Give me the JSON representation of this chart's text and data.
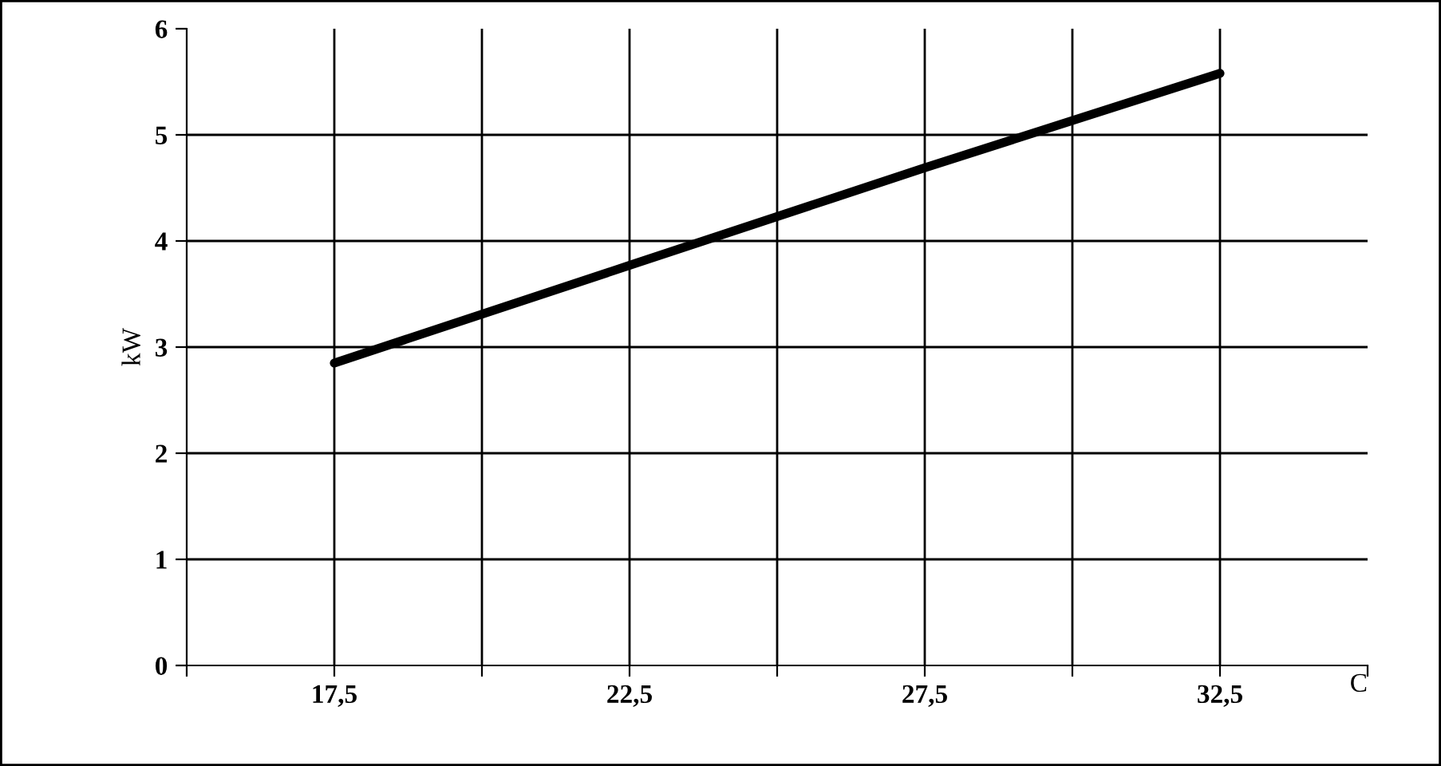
{
  "chart_data": {
    "type": "line",
    "xlabel": "C",
    "ylabel": "kW",
    "x": [
      17.5,
      22.5,
      27.5,
      32.5
    ],
    "series": [
      {
        "color": "#000000",
        "values": [
          2.85,
          3.77,
          4.69,
          5.58
        ]
      }
    ],
    "xlim": [
      15,
      35
    ],
    "xticks": [
      {
        "value": 15,
        "label": null
      },
      {
        "value": 17.5,
        "label": "17,5"
      },
      {
        "value": 20,
        "label": null
      },
      {
        "value": 22.5,
        "label": "22,5"
      },
      {
        "value": 25,
        "label": null
      },
      {
        "value": 27.5,
        "label": "27,5"
      },
      {
        "value": 30,
        "label": null
      },
      {
        "value": 32.5,
        "label": "32,5"
      },
      {
        "value": 35,
        "label": null
      }
    ],
    "ylim": [
      0,
      6
    ],
    "yticks": [
      0,
      1,
      2,
      3,
      4,
      5,
      6
    ],
    "grid": true,
    "marker": "none",
    "line_style": "solid"
  }
}
